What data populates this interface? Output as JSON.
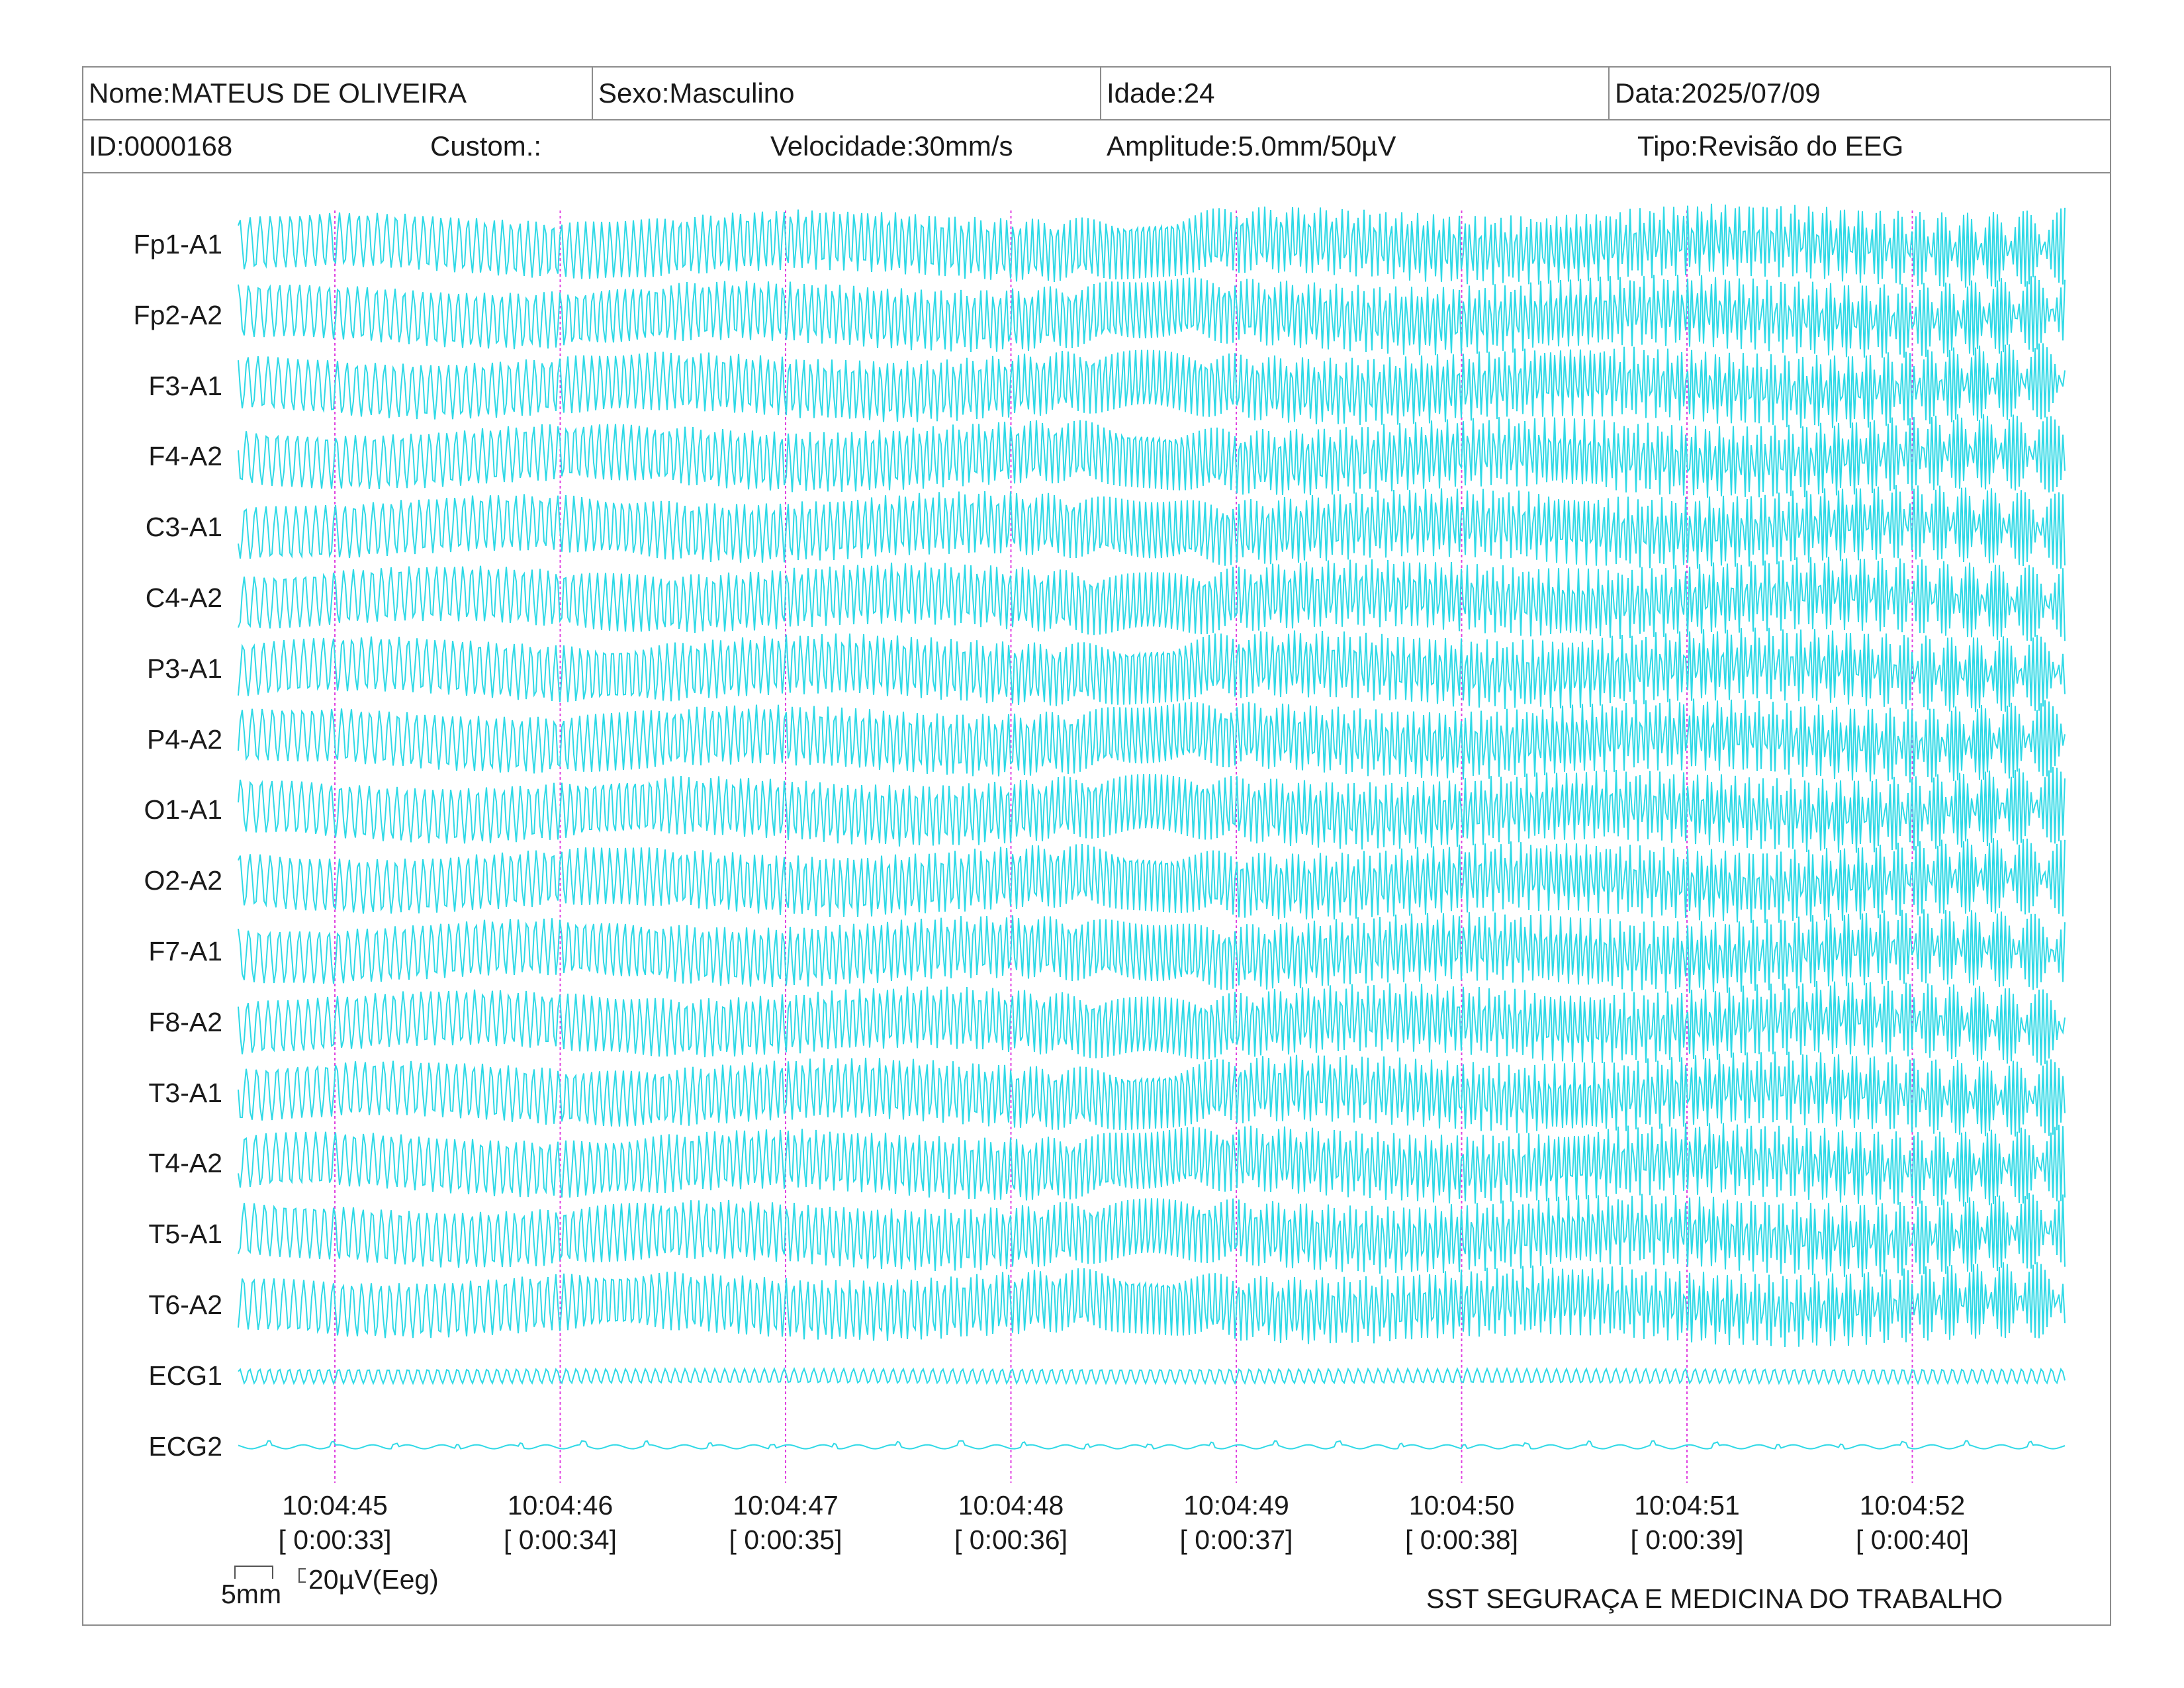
{
  "header": {
    "nome": "Nome:MATEUS DE OLIVEIRA",
    "sexo": "Sexo:Masculino",
    "idade": "Idade:24",
    "data": "Data:2025/07/09",
    "id": "ID:0000168",
    "custom": "Custom.:",
    "velocidade": "Velocidade:30mm/s",
    "amplitude": "Amplitude:5.0mm/50µV",
    "tipo": "Tipo:Revisão do EEG"
  },
  "colors": {
    "trace": "#2fd9e6",
    "marker": "#e040e0",
    "border": "#8c8c8c"
  },
  "chart_data": {
    "type": "line",
    "channels": [
      "Fp1-A1",
      "Fp2-A2",
      "F3-A1",
      "F4-A2",
      "C3-A1",
      "C4-A2",
      "P3-A1",
      "P4-A2",
      "O1-A1",
      "O2-A2",
      "F7-A1",
      "F8-A2",
      "T3-A1",
      "T4-A2",
      "T5-A1",
      "T6-A2",
      "ECG1",
      "ECG2"
    ],
    "time_marks": [
      {
        "time": "10:04:45",
        "elapsed": "[ 0:00:33]"
      },
      {
        "time": "10:04:46",
        "elapsed": "[ 0:00:34]"
      },
      {
        "time": "10:04:47",
        "elapsed": "[ 0:00:35]"
      },
      {
        "time": "10:04:48",
        "elapsed": "[ 0:00:36]"
      },
      {
        "time": "10:04:49",
        "elapsed": "[ 0:00:37]"
      },
      {
        "time": "10:04:50",
        "elapsed": "[ 0:00:38]"
      },
      {
        "time": "10:04:51",
        "elapsed": "[ 0:00:39]"
      },
      {
        "time": "10:04:52",
        "elapsed": "[ 0:00:40]"
      }
    ],
    "scale_time_label": "5mm",
    "scale_amp_label": "20µV(Eeg)"
  },
  "footer": {
    "org": "SST SEGURAÇA E MEDICINA DO TRABALHO"
  }
}
